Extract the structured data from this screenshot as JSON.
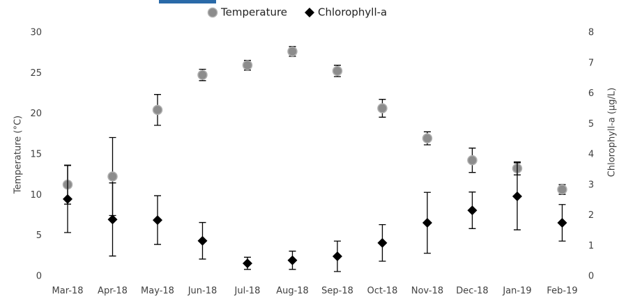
{
  "chart_data": {
    "type": "scatter",
    "categories": [
      "Mar-18",
      "Apr-18",
      "May-18",
      "Jun-18",
      "Jul-18",
      "Aug-18",
      "Sep-18",
      "Oct-18",
      "Nov-18",
      "Dec-18",
      "Jan-19",
      "Feb-19"
    ],
    "y_label": "Temperature (°C)",
    "y2_label": "Chlorophyll-a (µg/L)",
    "ylim": [
      0,
      30
    ],
    "yticks": [
      0,
      5,
      10,
      15,
      20,
      25,
      30
    ],
    "y2lim": [
      0,
      8
    ],
    "y2ticks": [
      0,
      1,
      2,
      3,
      4,
      5,
      6,
      7,
      8
    ],
    "legend": "top",
    "series": [
      {
        "name": "Temperature",
        "color": "#8c8c8c",
        "marker": "circle",
        "values": [
          11.3,
          12.3,
          20.5,
          24.8,
          26.0,
          27.7,
          25.3,
          20.7,
          17.0,
          14.3,
          13.3,
          10.7
        ],
        "errors": [
          2.4,
          4.8,
          1.9,
          0.7,
          0.6,
          0.6,
          0.7,
          1.1,
          0.8,
          1.5,
          0.8,
          0.6
        ]
      },
      {
        "name": "Chlorophyll-a",
        "color": "#000000",
        "marker": "diamond",
        "axis": "y2",
        "values": [
          2.54,
          1.87,
          1.85,
          1.17,
          0.43,
          0.53,
          0.66,
          1.1,
          1.76,
          2.17,
          2.63,
          1.76
        ],
        "errors": [
          1.1,
          1.2,
          0.8,
          0.6,
          0.2,
          0.3,
          0.5,
          0.6,
          1.0,
          0.6,
          1.1,
          0.6
        ]
      }
    ]
  }
}
